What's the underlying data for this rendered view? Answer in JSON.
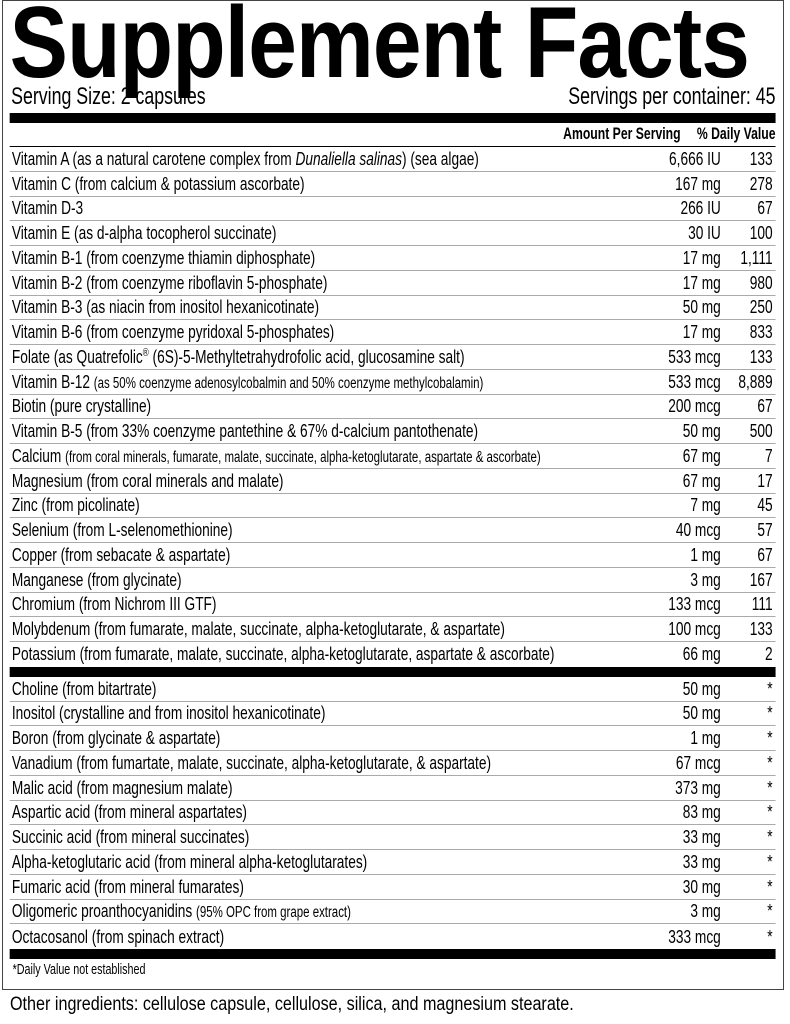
{
  "title": "Supplement Facts",
  "serving_size": "Serving Size: 2 capsules",
  "servings_per_container": "Servings per container: 45",
  "header": {
    "amount": "Amount Per Serving",
    "dv": "% Daily Value"
  },
  "section1": [
    {
      "parts": [
        {
          "t": "Vitamin A (as a natural carotene complex from "
        },
        {
          "t": "Dunaliella salinas",
          "s": "it"
        },
        {
          "t": ") (sea algae)"
        }
      ],
      "amount": "6,666 IU",
      "dv": "133"
    },
    {
      "parts": [
        {
          "t": "Vitamin C (from calcium & potassium ascorbate)"
        }
      ],
      "amount": "167 mg",
      "dv": "278"
    },
    {
      "parts": [
        {
          "t": "Vitamin D-3"
        }
      ],
      "amount": "266 IU",
      "dv": "67"
    },
    {
      "parts": [
        {
          "t": "Vitamin E (as d-alpha tocopherol succinate)"
        }
      ],
      "amount": "30 IU",
      "dv": "100"
    },
    {
      "parts": [
        {
          "t": "Vitamin B-1 (from coenzyme thiamin diphosphate)"
        }
      ],
      "amount": "17 mg",
      "dv": "1,111"
    },
    {
      "parts": [
        {
          "t": "Vitamin B-2 (from coenzyme riboflavin 5-phosphate)"
        }
      ],
      "amount": "17 mg",
      "dv": "980"
    },
    {
      "parts": [
        {
          "t": "Vitamin B-3 (as niacin from inositol hexanicotinate)"
        }
      ],
      "amount": "50 mg",
      "dv": "250"
    },
    {
      "parts": [
        {
          "t": "Vitamin B-6 (from coenzyme pyridoxal 5-phosphates)"
        }
      ],
      "amount": "17 mg",
      "dv": "833"
    },
    {
      "parts": [
        {
          "t": "Folate (as Quatrefolic"
        },
        {
          "t": "®",
          "s": "sup"
        },
        {
          "t": " (6S)-5-Methyltetrahydrofolic acid, glucosamine salt)"
        }
      ],
      "amount": "533 mcg",
      "dv": "133"
    },
    {
      "parts": [
        {
          "t": "Vitamin B-12 "
        },
        {
          "t": "(as 50% coenzyme adenosylcobalmin and 50% coenzyme methylcobalamin)",
          "s": "sm"
        }
      ],
      "amount": "533 mcg",
      "dv": "8,889"
    },
    {
      "parts": [
        {
          "t": "Biotin (pure crystalline)"
        }
      ],
      "amount": "200 mcg",
      "dv": "67"
    },
    {
      "parts": [
        {
          "t": "Vitamin B-5 (from 33% coenzyme pantethine & 67% d-calcium pantothenate)"
        }
      ],
      "amount": "50 mg",
      "dv": "500"
    },
    {
      "parts": [
        {
          "t": "Calcium "
        },
        {
          "t": "(from coral minerals, fumarate, malate, succinate, alpha-ketoglutarate, aspartate & ascorbate)",
          "s": "sm"
        }
      ],
      "amount": "67 mg",
      "dv": "7"
    },
    {
      "parts": [
        {
          "t": "Magnesium (from coral minerals and malate)"
        }
      ],
      "amount": "67 mg",
      "dv": "17"
    },
    {
      "parts": [
        {
          "t": "Zinc (from picolinate)"
        }
      ],
      "amount": "7 mg",
      "dv": "45"
    },
    {
      "parts": [
        {
          "t": "Selenium (from L-selenomethionine)"
        }
      ],
      "amount": "40 mcg",
      "dv": "57"
    },
    {
      "parts": [
        {
          "t": "Copper (from sebacate & aspartate)"
        }
      ],
      "amount": "1 mg",
      "dv": "67"
    },
    {
      "parts": [
        {
          "t": "Manganese (from glycinate)"
        }
      ],
      "amount": "3 mg",
      "dv": "167"
    },
    {
      "parts": [
        {
          "t": "Chromium (from Nichrom III GTF)"
        }
      ],
      "amount": "133 mcg",
      "dv": "111"
    },
    {
      "parts": [
        {
          "t": "Molybdenum (from fumarate, malate, succinate, alpha-ketoglutarate, & aspartate)"
        }
      ],
      "amount": "100 mcg",
      "dv": "133"
    },
    {
      "parts": [
        {
          "t": "Potassium (from fumarate, malate, succinate, alpha-ketoglutarate, aspartate & ascorbate)"
        }
      ],
      "amount": "66 mg",
      "dv": "2"
    }
  ],
  "section2": [
    {
      "parts": [
        {
          "t": "Choline (from bitartrate)"
        }
      ],
      "amount": "50 mg",
      "dv": "*"
    },
    {
      "parts": [
        {
          "t": "Inositol (crystalline and from inositol hexanicotinate)"
        }
      ],
      "amount": "50 mg",
      "dv": "*"
    },
    {
      "parts": [
        {
          "t": "Boron (from glycinate & aspartate)"
        }
      ],
      "amount": "1 mg",
      "dv": "*"
    },
    {
      "parts": [
        {
          "t": "Vanadium (from fumartate, malate, succinate, alpha-ketoglutarate, & aspartate)"
        }
      ],
      "amount": "67 mcg",
      "dv": "*"
    },
    {
      "parts": [
        {
          "t": "Malic acid (from magnesium malate)"
        }
      ],
      "amount": "373 mg",
      "dv": "*"
    },
    {
      "parts": [
        {
          "t": "Aspartic acid (from mineral aspartates)"
        }
      ],
      "amount": "83 mg",
      "dv": "*"
    },
    {
      "parts": [
        {
          "t": "Succinic acid (from mineral succinates)"
        }
      ],
      "amount": "33 mg",
      "dv": "*"
    },
    {
      "parts": [
        {
          "t": "Alpha-ketoglutaric acid (from mineral alpha-ketoglutarates)"
        }
      ],
      "amount": "33 mg",
      "dv": "*"
    },
    {
      "parts": [
        {
          "t": "Fumaric acid (from mineral fumarates)"
        }
      ],
      "amount": "30 mg",
      "dv": "*"
    },
    {
      "parts": [
        {
          "t": "Oligomeric proanthocyanidins "
        },
        {
          "t": "(95% OPC from grape extract)",
          "s": "sm"
        }
      ],
      "amount": "3 mg",
      "dv": "*"
    },
    {
      "parts": [
        {
          "t": "Octacosanol (from spinach extract)"
        }
      ],
      "amount": "333 mcg",
      "dv": "*"
    }
  ],
  "footnote": "*Daily Value not established",
  "other_ingredients": "Other ingredients: cellulose capsule, cellulose, silica, and magnesium stearate."
}
